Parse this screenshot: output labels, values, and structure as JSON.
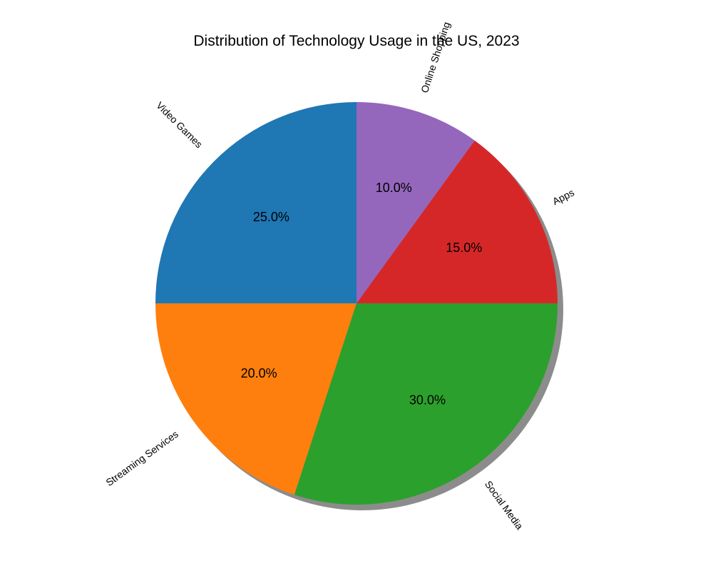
{
  "chart_data": {
    "type": "pie",
    "title": "Distribution of Technology Usage in the US, 2023",
    "categories": [
      "Video Games",
      "Streaming Services",
      "Social Media",
      "Apps",
      "Online Shopping"
    ],
    "values": [
      25,
      20,
      30,
      15,
      10
    ],
    "percent_labels": [
      "25.0%",
      "20.0%",
      "30.0%",
      "15.0%",
      "10.0%"
    ],
    "colors": [
      "#1f77b4",
      "#ff7f0e",
      "#2ca02c",
      "#d62728",
      "#9467bd"
    ],
    "start_angle_deg": 90,
    "direction": "counterclockwise",
    "shadow": true,
    "labels_rotated": true
  }
}
